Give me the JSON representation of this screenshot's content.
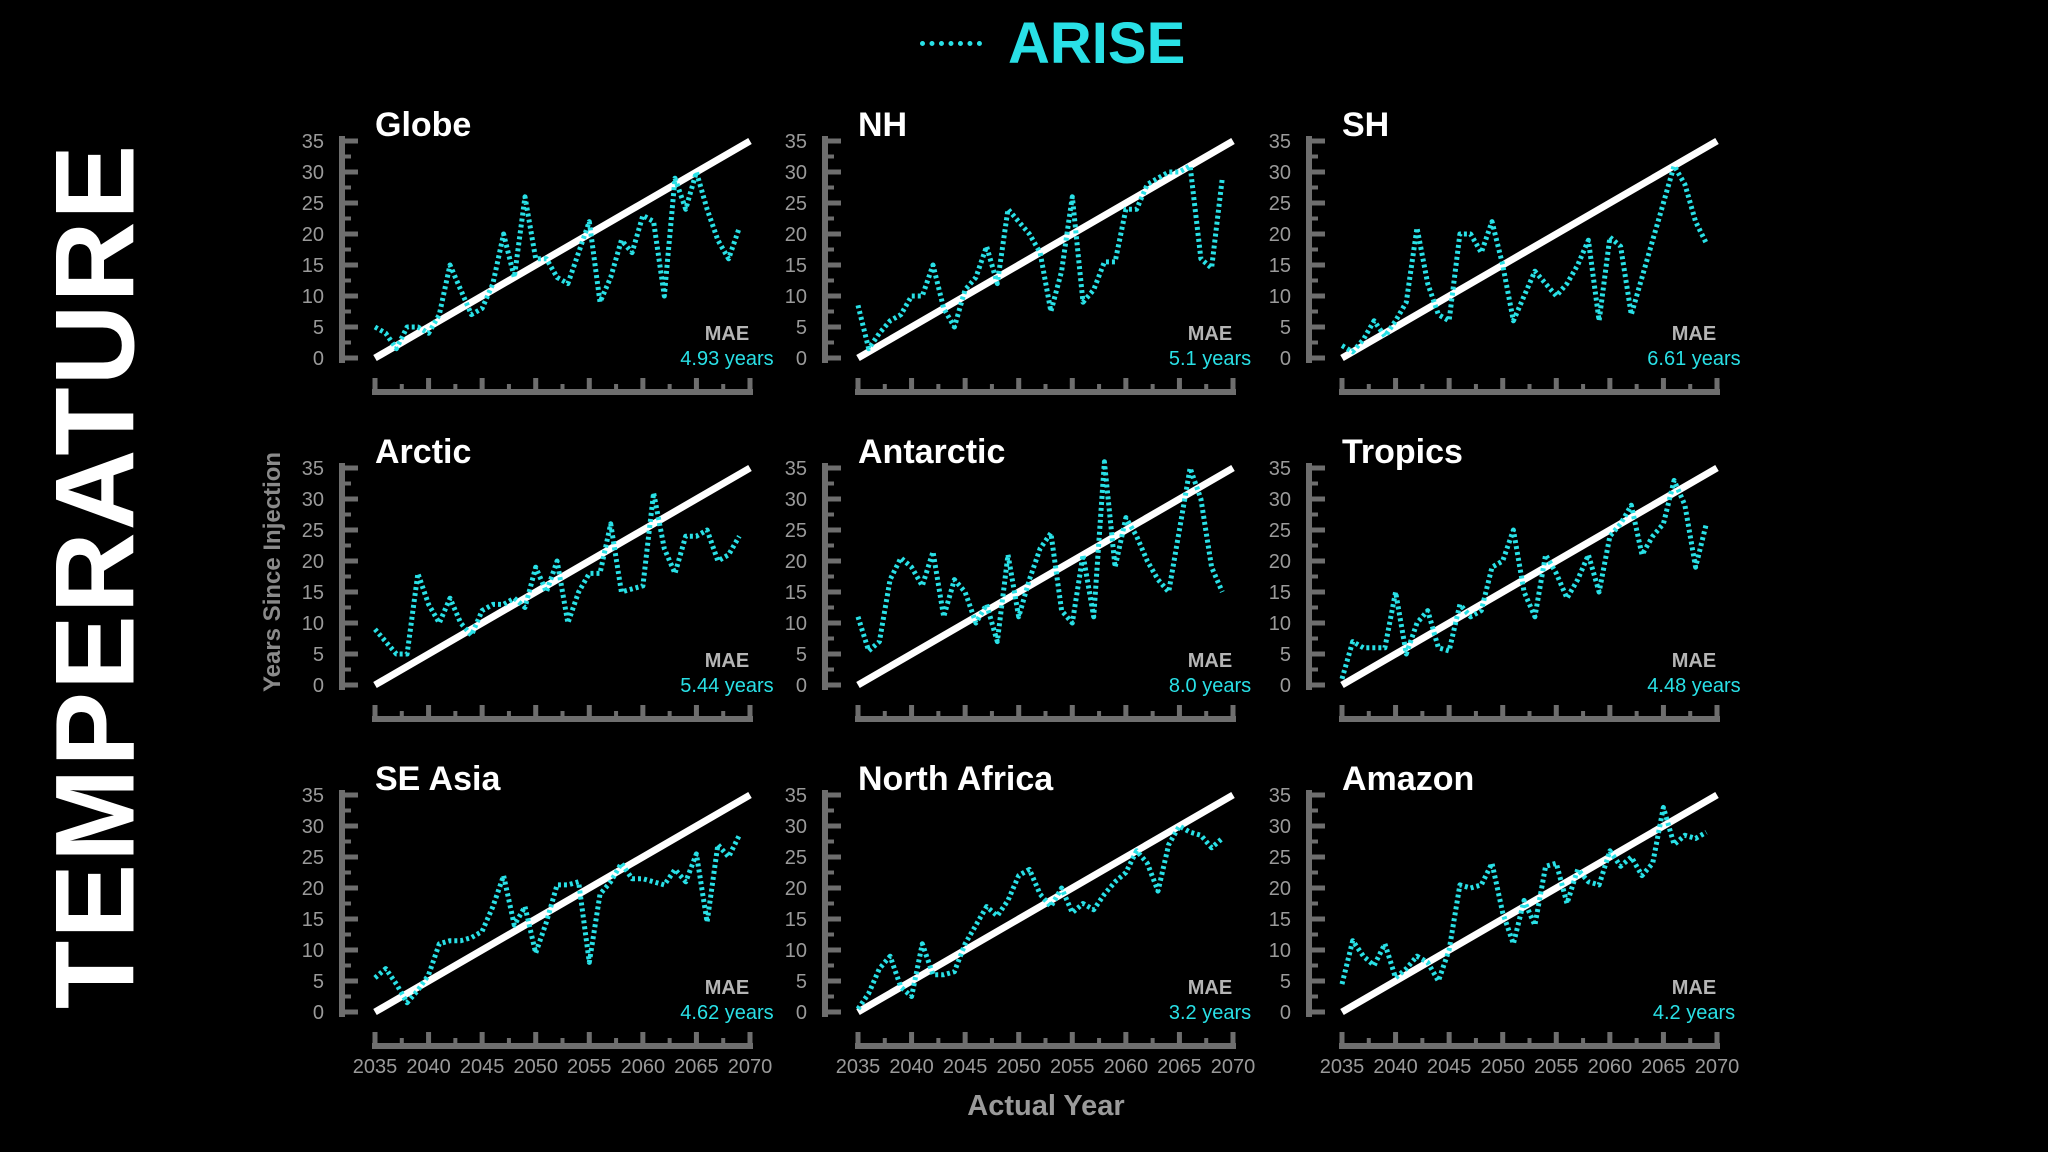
{
  "side_title": "TEMPERATURE",
  "legend": {
    "label": "ARISE",
    "color": "#29e0e6"
  },
  "shared_ylabel": "Years Since Injection",
  "shared_xlabel": "Actual Year",
  "colors": {
    "series": "#29e0e6",
    "reference": "#ffffff",
    "axis": "#6e6e6e",
    "tick_text": "#9a9a9a"
  },
  "chart_data": [
    {
      "type": "line",
      "title": "Globe",
      "mae_label": "MAE",
      "mae": "4.93 years",
      "xlim": [
        2035,
        2070
      ],
      "ylim": [
        0,
        35
      ],
      "xticks": [
        2035,
        2040,
        2045,
        2050,
        2055,
        2060,
        2065,
        2070
      ],
      "yticks": [
        0,
        5,
        10,
        15,
        20,
        25,
        30,
        35
      ],
      "reference": {
        "x": [
          2035,
          2070
        ],
        "y": [
          0,
          35
        ]
      },
      "series": [
        {
          "name": "ARISE",
          "x": [
            2035,
            2036,
            2037,
            2038,
            2039,
            2040,
            2041,
            2042,
            2043,
            2044,
            2045,
            2046,
            2047,
            2048,
            2049,
            2050,
            2051,
            2052,
            2053,
            2054,
            2055,
            2056,
            2057,
            2058,
            2059,
            2060,
            2061,
            2062,
            2063,
            2064,
            2065,
            2066,
            2067,
            2068,
            2069
          ],
          "y": [
            5,
            4,
            1.5,
            5,
            5,
            4,
            7,
            15,
            11,
            7,
            8,
            12,
            20,
            13,
            26,
            16,
            16,
            13,
            12,
            17,
            22,
            9,
            13,
            19,
            17,
            23,
            22,
            10,
            29,
            24,
            30,
            24,
            19,
            16,
            21
          ]
        }
      ]
    },
    {
      "type": "line",
      "title": "NH",
      "mae_label": "MAE",
      "mae": "5.1 years",
      "xlim": [
        2035,
        2070
      ],
      "ylim": [
        0,
        35
      ],
      "xticks": [
        2035,
        2040,
        2045,
        2050,
        2055,
        2060,
        2065,
        2070
      ],
      "yticks": [
        0,
        5,
        10,
        15,
        20,
        25,
        30,
        35
      ],
      "reference": {
        "x": [
          2035,
          2070
        ],
        "y": [
          0,
          35
        ]
      },
      "series": [
        {
          "name": "ARISE",
          "x": [
            2035,
            2036,
            2037,
            2038,
            2039,
            2040,
            2041,
            2042,
            2043,
            2044,
            2045,
            2046,
            2047,
            2048,
            2049,
            2050,
            2051,
            2052,
            2053,
            2054,
            2055,
            2056,
            2057,
            2058,
            2059,
            2060,
            2061,
            2062,
            2063,
            2064,
            2065,
            2066,
            2067,
            2068,
            2069
          ],
          "y": [
            8.5,
            1.5,
            4,
            6,
            7,
            10,
            10,
            15,
            8,
            5,
            11,
            13,
            18,
            12,
            24,
            22,
            20,
            17,
            7.5,
            14,
            26,
            9,
            11,
            15.5,
            15.5,
            24,
            24,
            28,
            29,
            30,
            30,
            31,
            16,
            14.5,
            29
          ]
        }
      ]
    },
    {
      "type": "line",
      "title": "SH",
      "mae_label": "MAE",
      "mae": "6.61 years",
      "xlim": [
        2035,
        2070
      ],
      "ylim": [
        0,
        35
      ],
      "xticks": [
        2035,
        2040,
        2045,
        2050,
        2055,
        2060,
        2065,
        2070
      ],
      "yticks": [
        0,
        5,
        10,
        15,
        20,
        25,
        30,
        35
      ],
      "reference": {
        "x": [
          2035,
          2070
        ],
        "y": [
          0,
          35
        ]
      },
      "series": [
        {
          "name": "ARISE",
          "x": [
            2035,
            2036,
            2037,
            2038,
            2039,
            2040,
            2041,
            2042,
            2043,
            2044,
            2045,
            2046,
            2047,
            2048,
            2049,
            2050,
            2051,
            2052,
            2053,
            2054,
            2055,
            2056,
            2057,
            2058,
            2059,
            2060,
            2061,
            2062,
            2063,
            2064,
            2065,
            2066,
            2067,
            2068,
            2069
          ],
          "y": [
            2,
            1,
            3,
            6,
            3.5,
            6,
            9,
            21,
            12,
            7,
            6,
            20,
            20,
            17,
            22,
            15,
            6,
            10,
            14,
            12,
            10,
            12,
            15,
            19,
            6,
            19.5,
            18,
            7,
            13,
            19,
            25,
            31,
            28,
            22,
            18.5
          ]
        }
      ]
    },
    {
      "type": "line",
      "title": "Arctic",
      "mae_label": "MAE",
      "mae": "5.44 years",
      "xlim": [
        2035,
        2070
      ],
      "ylim": [
        0,
        35
      ],
      "xticks": [
        2035,
        2040,
        2045,
        2050,
        2055,
        2060,
        2065,
        2070
      ],
      "yticks": [
        0,
        5,
        10,
        15,
        20,
        25,
        30,
        35
      ],
      "reference": {
        "x": [
          2035,
          2070
        ],
        "y": [
          0,
          35
        ]
      },
      "series": [
        {
          "name": "ARISE",
          "x": [
            2035,
            2036,
            2037,
            2038,
            2039,
            2040,
            2041,
            2042,
            2043,
            2044,
            2045,
            2046,
            2047,
            2048,
            2049,
            2050,
            2051,
            2052,
            2053,
            2054,
            2055,
            2056,
            2057,
            2058,
            2059,
            2060,
            2061,
            2062,
            2063,
            2064,
            2065,
            2066,
            2067,
            2068,
            2069
          ],
          "y": [
            9,
            7,
            5,
            5,
            18,
            13,
            10,
            14,
            10,
            8,
            12,
            13,
            13,
            14,
            12.5,
            19,
            15,
            20,
            10,
            15,
            18,
            18,
            26,
            15,
            15.5,
            16,
            31,
            22,
            18,
            24,
            24,
            25,
            20,
            21,
            24
          ]
        }
      ]
    },
    {
      "type": "line",
      "title": "Antarctic",
      "mae_label": "MAE",
      "mae": "8.0 years",
      "xlim": [
        2035,
        2070
      ],
      "ylim": [
        0,
        35
      ],
      "xticks": [
        2035,
        2040,
        2045,
        2050,
        2055,
        2060,
        2065,
        2070
      ],
      "yticks": [
        0,
        5,
        10,
        15,
        20,
        25,
        30,
        35
      ],
      "reference": {
        "x": [
          2035,
          2070
        ],
        "y": [
          0,
          35
        ]
      },
      "series": [
        {
          "name": "ARISE",
          "x": [
            2035,
            2036,
            2037,
            2038,
            2039,
            2040,
            2041,
            2042,
            2043,
            2044,
            2045,
            2046,
            2047,
            2048,
            2049,
            2050,
            2051,
            2052,
            2053,
            2054,
            2055,
            2056,
            2057,
            2058,
            2059,
            2060,
            2061,
            2062,
            2063,
            2064,
            2065,
            2066,
            2067,
            2068,
            2069
          ],
          "y": [
            11,
            5.5,
            7,
            17,
            20.5,
            19,
            16,
            21.5,
            11,
            17,
            15,
            10,
            13,
            7,
            21,
            11,
            17,
            22,
            24.5,
            12,
            10,
            21,
            11,
            36,
            19,
            27,
            24,
            20,
            17,
            15,
            25,
            35,
            30,
            19,
            15
          ]
        }
      ]
    },
    {
      "type": "line",
      "title": "Tropics",
      "mae_label": "MAE",
      "mae": "4.48 years",
      "xlim": [
        2035,
        2070
      ],
      "ylim": [
        0,
        35
      ],
      "xticks": [
        2035,
        2040,
        2045,
        2050,
        2055,
        2060,
        2065,
        2070
      ],
      "yticks": [
        0,
        5,
        10,
        15,
        20,
        25,
        30,
        35
      ],
      "reference": {
        "x": [
          2035,
          2070
        ],
        "y": [
          0,
          35
        ]
      },
      "series": [
        {
          "name": "ARISE",
          "x": [
            2035,
            2036,
            2037,
            2038,
            2039,
            2040,
            2041,
            2042,
            2043,
            2044,
            2045,
            2046,
            2047,
            2048,
            2049,
            2050,
            2051,
            2052,
            2053,
            2054,
            2055,
            2056,
            2057,
            2058,
            2059,
            2060,
            2061,
            2062,
            2063,
            2064,
            2065,
            2066,
            2067,
            2068,
            2069
          ],
          "y": [
            1,
            7,
            6,
            6,
            6,
            15,
            5,
            10,
            12,
            6,
            5.5,
            13,
            11,
            12,
            19,
            20,
            25,
            15,
            11,
            21,
            18,
            14,
            17,
            21,
            15,
            24,
            26,
            29,
            21,
            24,
            26,
            33,
            29,
            19,
            26
          ]
        }
      ]
    },
    {
      "type": "line",
      "title": "SE Asia",
      "mae_label": "MAE",
      "mae": "4.62 years",
      "xlim": [
        2035,
        2070
      ],
      "ylim": [
        0,
        35
      ],
      "xticks": [
        2035,
        2040,
        2045,
        2050,
        2055,
        2060,
        2065,
        2070
      ],
      "yticks": [
        0,
        5,
        10,
        15,
        20,
        25,
        30,
        35
      ],
      "reference": {
        "x": [
          2035,
          2070
        ],
        "y": [
          0,
          35
        ]
      },
      "series": [
        {
          "name": "ARISE",
          "x": [
            2035,
            2036,
            2037,
            2038,
            2039,
            2040,
            2041,
            2042,
            2043,
            2044,
            2045,
            2046,
            2047,
            2048,
            2049,
            2050,
            2051,
            2052,
            2053,
            2054,
            2055,
            2056,
            2057,
            2058,
            2059,
            2060,
            2061,
            2062,
            2063,
            2064,
            2065,
            2066,
            2067,
            2068,
            2069
          ],
          "y": [
            5.5,
            7,
            4.5,
            1.5,
            3.5,
            6,
            11,
            11.5,
            11.5,
            12,
            13,
            17,
            22,
            14,
            17,
            9.5,
            14.5,
            20.5,
            20.5,
            21,
            8,
            19,
            21,
            24,
            21.5,
            21.5,
            21,
            20.5,
            23,
            21,
            25.5,
            14.5,
            27,
            25,
            28.5
          ]
        }
      ]
    },
    {
      "type": "line",
      "title": "North Africa",
      "mae_label": "MAE",
      "mae": "3.2 years",
      "xlim": [
        2035,
        2070
      ],
      "ylim": [
        0,
        35
      ],
      "xticks": [
        2035,
        2040,
        2045,
        2050,
        2055,
        2060,
        2065,
        2070
      ],
      "yticks": [
        0,
        5,
        10,
        15,
        20,
        25,
        30,
        35
      ],
      "reference": {
        "x": [
          2035,
          2070
        ],
        "y": [
          0,
          35
        ]
      },
      "series": [
        {
          "name": "ARISE",
          "x": [
            2035,
            2036,
            2037,
            2038,
            2039,
            2040,
            2041,
            2042,
            2043,
            2044,
            2045,
            2046,
            2047,
            2048,
            2049,
            2050,
            2051,
            2052,
            2053,
            2054,
            2055,
            2056,
            2057,
            2058,
            2059,
            2060,
            2061,
            2062,
            2063,
            2064,
            2065,
            2066,
            2067,
            2068,
            2069
          ],
          "y": [
            0.5,
            3,
            7,
            9,
            4,
            2.5,
            11,
            6,
            6,
            6.5,
            11,
            14,
            17,
            15.5,
            18,
            22,
            23,
            19,
            17,
            20,
            16,
            17.5,
            16.5,
            19,
            21,
            22.5,
            26,
            24,
            19.5,
            27,
            30,
            29,
            28.5,
            26.5,
            28
          ]
        }
      ]
    },
    {
      "type": "line",
      "title": "Amazon",
      "mae_label": "MAE",
      "mae": "4.2 years",
      "xlim": [
        2035,
        2070
      ],
      "ylim": [
        0,
        35
      ],
      "xticks": [
        2035,
        2040,
        2045,
        2050,
        2055,
        2060,
        2065,
        2070
      ],
      "yticks": [
        0,
        5,
        10,
        15,
        20,
        25,
        30,
        35
      ],
      "reference": {
        "x": [
          2035,
          2070
        ],
        "y": [
          0,
          35
        ]
      },
      "series": [
        {
          "name": "ARISE",
          "x": [
            2035,
            2036,
            2037,
            2038,
            2039,
            2040,
            2041,
            2042,
            2043,
            2044,
            2045,
            2046,
            2047,
            2048,
            2049,
            2050,
            2051,
            2052,
            2053,
            2054,
            2055,
            2056,
            2057,
            2058,
            2059,
            2060,
            2061,
            2062,
            2063,
            2064,
            2065,
            2066,
            2067,
            2068,
            2069
          ],
          "y": [
            4.5,
            11.5,
            9,
            7.5,
            11,
            5.5,
            7,
            9,
            8,
            5,
            10,
            20.5,
            20,
            20.5,
            24,
            16,
            11,
            18,
            14,
            23.5,
            24,
            17.5,
            23,
            21,
            20.5,
            26,
            23.5,
            25,
            22,
            24,
            33,
            27,
            28.5,
            28,
            29
          ]
        }
      ]
    }
  ]
}
